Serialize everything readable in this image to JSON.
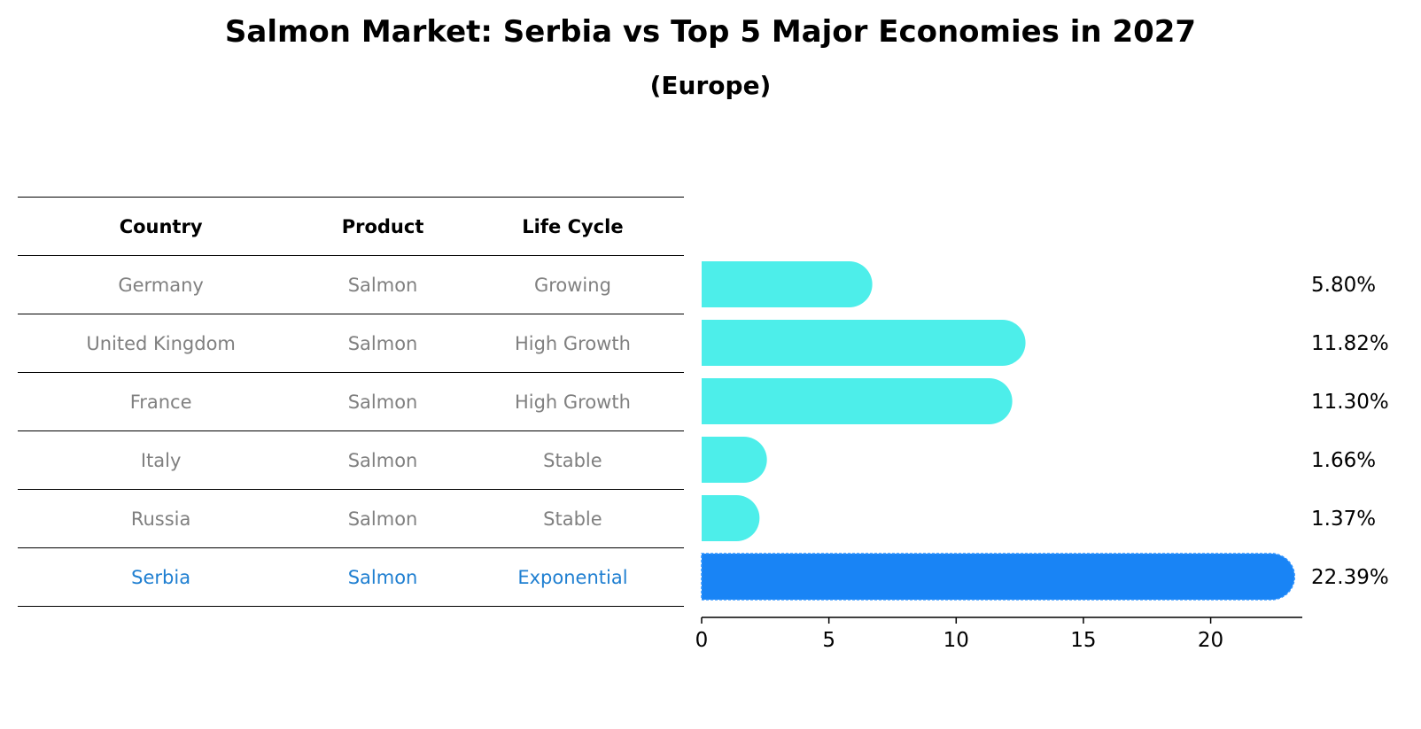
{
  "title": "Salmon Market: Serbia vs Top 5 Major Economies in 2027",
  "subtitle": "(Europe)",
  "table": {
    "headers": [
      "Country",
      "Product",
      "Life Cycle"
    ],
    "rows": [
      {
        "country": "Germany",
        "product": "Salmon",
        "life_cycle": "Growing"
      },
      {
        "country": "United Kingdom",
        "product": "Salmon",
        "life_cycle": "High Growth"
      },
      {
        "country": "France",
        "product": "Salmon",
        "life_cycle": "High Growth"
      },
      {
        "country": "Italy",
        "product": "Salmon",
        "life_cycle": "Stable"
      },
      {
        "country": "Russia",
        "product": "Salmon",
        "life_cycle": "Stable"
      },
      {
        "country": "Serbia",
        "product": "Salmon",
        "life_cycle": "Exponential"
      }
    ]
  },
  "chart_data": {
    "type": "bar",
    "orientation": "horizontal",
    "categories": [
      "Germany",
      "United Kingdom",
      "France",
      "Italy",
      "Russia",
      "Serbia"
    ],
    "values": [
      5.8,
      11.82,
      11.3,
      1.66,
      1.37,
      22.39
    ],
    "value_labels": [
      "5.80%",
      "11.82%",
      "11.30%",
      "1.66%",
      "1.37%",
      "22.39%"
    ],
    "highlight": "Serbia",
    "xlim": [
      0,
      23.6
    ],
    "xticks": [
      0,
      5,
      10,
      15,
      20
    ],
    "colors": {
      "default": "#4deeea",
      "highlight": "#1984f5"
    }
  }
}
